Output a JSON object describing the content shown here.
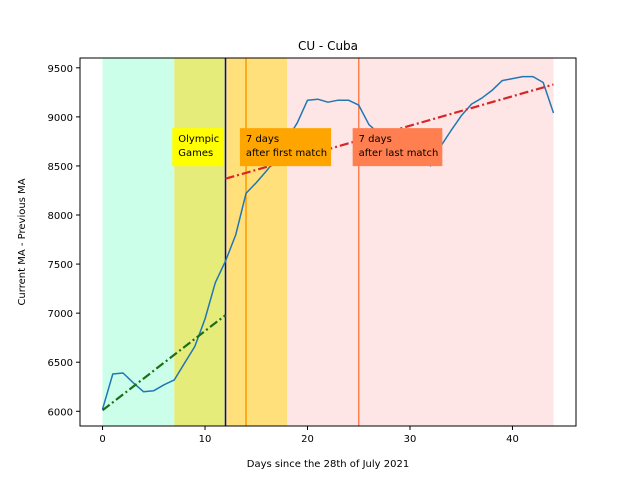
{
  "chart_data": {
    "type": "line",
    "title": "CU - Cuba",
    "xlabel": "Days since the 28th of July 2021",
    "ylabel": "Current MA - Previous MA",
    "xlim": [
      -2.2,
      46.2
    ],
    "ylim": [
      5850,
      9600
    ],
    "xticks": [
      0,
      10,
      20,
      30,
      40
    ],
    "yticks": [
      6000,
      6500,
      7000,
      7500,
      8000,
      8500,
      9000,
      9500
    ],
    "grid": false,
    "series": [
      {
        "color": "#1f77b4",
        "x": [
          0,
          1,
          2,
          3,
          4,
          5,
          6,
          7,
          8,
          9,
          10,
          11,
          12,
          13,
          14,
          15,
          16,
          17,
          18,
          19,
          20,
          21,
          22,
          23,
          24,
          25,
          26,
          27,
          28,
          29,
          30,
          31,
          32,
          33,
          34,
          35,
          36,
          37,
          38,
          39,
          40,
          41,
          42,
          43,
          44
        ],
        "y": [
          6020,
          6380,
          6390,
          6290,
          6200,
          6210,
          6270,
          6320,
          6490,
          6660,
          6940,
          7310,
          7530,
          7800,
          8220,
          8330,
          8450,
          8580,
          8770,
          8940,
          9170,
          9180,
          9150,
          9170,
          9170,
          9120,
          8920,
          8830,
          8820,
          8790,
          8750,
          8650,
          8500,
          8700,
          8860,
          9010,
          9130,
          9190,
          9270,
          9370,
          9390,
          9410,
          9410,
          9350,
          9040
        ]
      }
    ],
    "trend_lines": [
      {
        "color": "#1b6e1b",
        "x": [
          0,
          12
        ],
        "y": [
          6010,
          6980
        ]
      },
      {
        "color": "#d62728",
        "x": [
          12,
          44
        ],
        "y": [
          8370,
          9330
        ]
      }
    ],
    "regions": [
      {
        "x0": 0,
        "x1": 7,
        "color": "#ccffe9"
      },
      {
        "x0": 7,
        "x1": 12,
        "color": "#e5ec7a"
      },
      {
        "x0": 12,
        "x1": 18,
        "color": "#ffe07a"
      },
      {
        "x0": 18,
        "x1": 44,
        "color": "#ffe6e6"
      }
    ],
    "vlines": [
      {
        "x": 12,
        "color": "#0000cc"
      },
      {
        "x": 14,
        "color": "#ff9900"
      },
      {
        "x": 25,
        "color": "#ff7f50"
      }
    ],
    "annotations": [
      {
        "lines": [
          "Olympic",
          "Games"
        ],
        "x": 7,
        "y": 8600,
        "bg": "#ffff00"
      },
      {
        "lines": [
          "7 days",
          "after first match"
        ],
        "x": 13.6,
        "y": 8600,
        "bg": "#ffa500"
      },
      {
        "lines": [
          "7 days",
          "after last match"
        ],
        "x": 24.6,
        "y": 8600,
        "bg": "#ff7f50"
      }
    ]
  }
}
